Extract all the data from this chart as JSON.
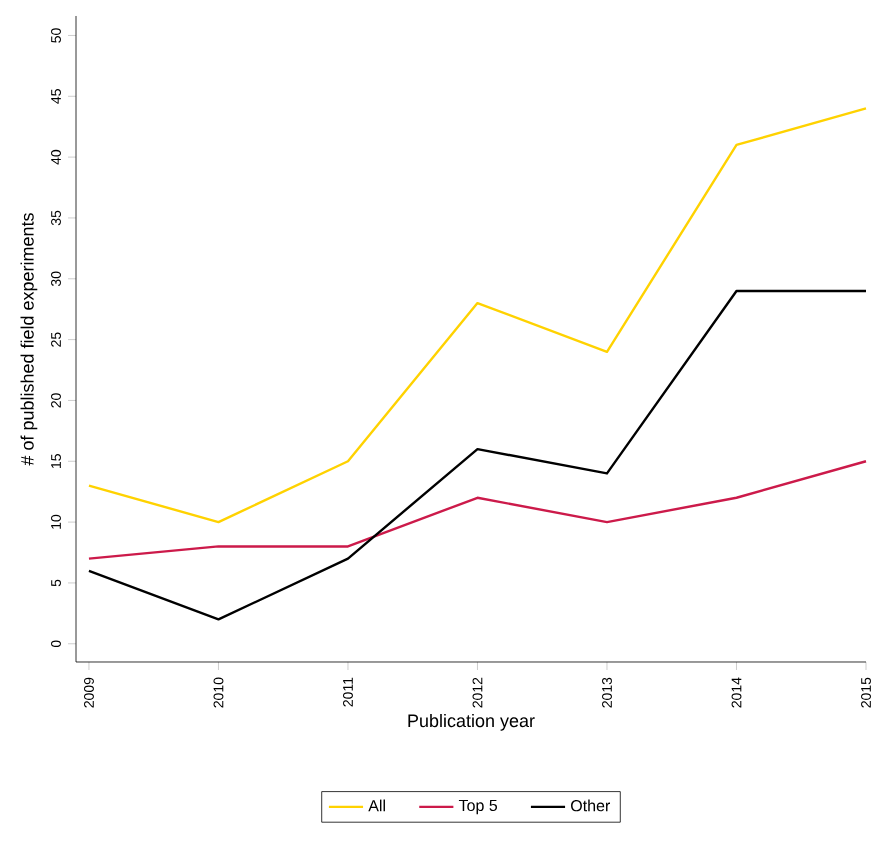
{
  "chart_data": {
    "type": "line",
    "xlabel": "Publication year",
    "ylabel": "# of published field experiments",
    "x": [
      2009,
      2010,
      2011,
      2012,
      2013,
      2014,
      2015
    ],
    "series": [
      {
        "name": "All",
        "color": "#ffd200",
        "values": [
          13,
          10,
          15,
          28,
          24,
          41,
          44
        ]
      },
      {
        "name": "Top 5",
        "color": "#cc1a4a",
        "values": [
          7,
          8,
          8,
          12,
          10,
          12,
          15
        ]
      },
      {
        "name": "Other",
        "color": "#000000",
        "values": [
          6,
          2,
          7,
          16,
          14,
          29,
          29
        ]
      }
    ],
    "xlim": [
      2008.9,
      2015
    ],
    "ylim": [
      -1.5,
      51.6
    ],
    "xticks": [
      2009,
      2010,
      2011,
      2012,
      2013,
      2014,
      2015
    ],
    "yticks": [
      0,
      5,
      10,
      15,
      20,
      25,
      30,
      35,
      40,
      45,
      50
    ],
    "legend": "bottom",
    "grid": false,
    "marker": "none",
    "line_style": "solid"
  }
}
